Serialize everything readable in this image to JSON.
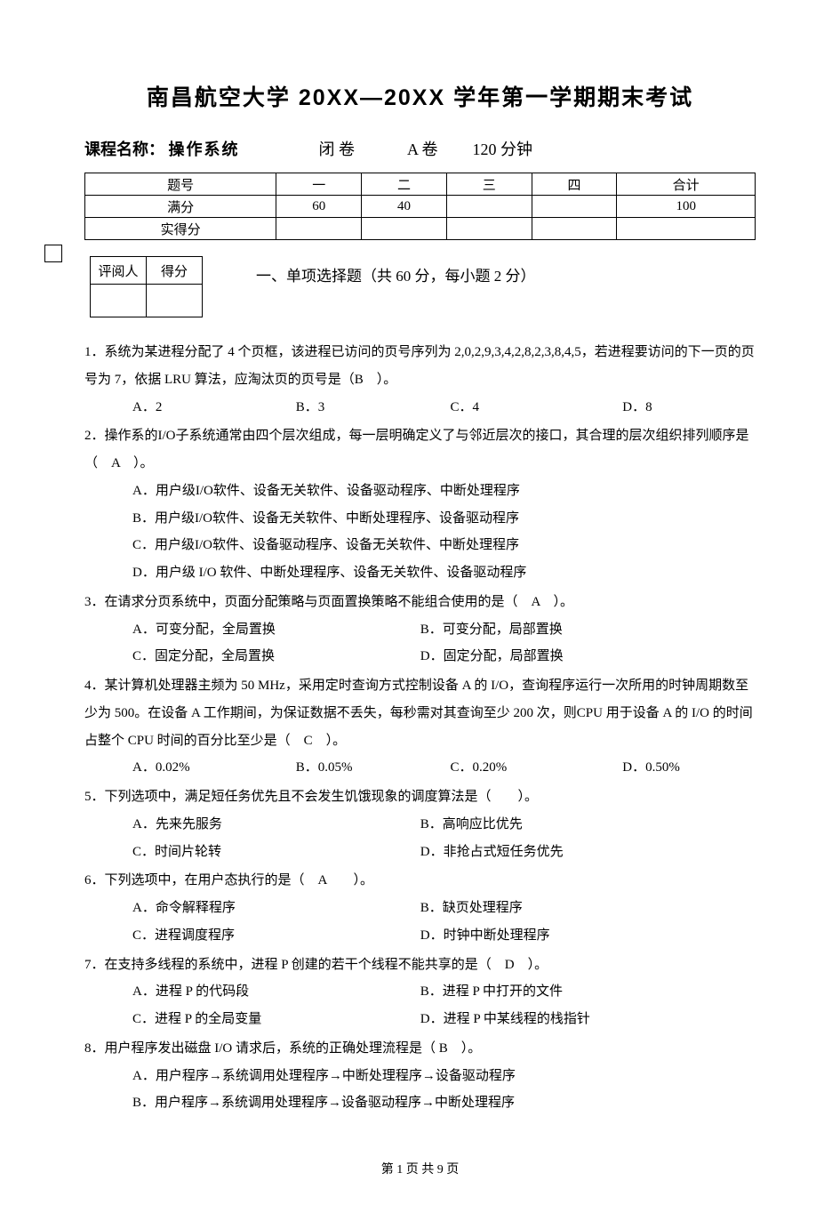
{
  "title": "南昌航空大学 20XX—20XX 学年第一学期期末考试",
  "course": {
    "label": "课程名称：",
    "name": "操作系统",
    "mode": "闭 卷",
    "paper": "A 卷",
    "duration": "120 分钟"
  },
  "score_table": {
    "headers": [
      "题号",
      "一",
      "二",
      "三",
      "四",
      "合计"
    ],
    "rows": [
      [
        "满分",
        "60",
        "40",
        "",
        "",
        "100"
      ],
      [
        "实得分",
        "",
        "",
        "",
        "",
        ""
      ]
    ]
  },
  "review_table": {
    "h1": "评阅人",
    "h2": "得分"
  },
  "section1_title": "一、单项选择题（共 60 分，每小题 2 分）",
  "q1": {
    "stem": "1．系统为某进程分配了 4 个页框，该进程已访问的页号序列为 2,0,2,9,3,4,2,8,2,3,8,4,5，若进程要访问的下一页的页号为 7，依据 LRU 算法，应淘汰页的页号是（B　）。",
    "A": "A．2",
    "B": "B．3",
    "C": "C．4",
    "D": "D．8"
  },
  "q2": {
    "stem": "2．操作系的I/O子系统通常由四个层次组成，每一层明确定义了与邻近层次的接口，其合理的层次组织排列顺序是（　A　）。",
    "A": "A．用户级I/O软件、设备无关软件、设备驱动程序、中断处理程序",
    "B": "B．用户级I/O软件、设备无关软件、中断处理程序、设备驱动程序",
    "C": "C．用户级I/O软件、设备驱动程序、设备无关软件、中断处理程序",
    "D": "D．用户级 I/O 软件、中断处理程序、设备无关软件、设备驱动程序"
  },
  "q3": {
    "stem": "3．在请求分页系统中，页面分配策略与页面置换策略不能组合使用的是（　A　）。",
    "A": "A．可变分配，全局置换",
    "B": "B．可变分配，局部置换",
    "C": "C．固定分配，全局置换",
    "D": "D．固定分配，局部置换"
  },
  "q4": {
    "stem": "4．某计算机处理器主频为 50 MHz，采用定时查询方式控制设备 A 的 I/O，查询程序运行一次所用的时钟周期数至少为 500。在设备 A 工作期间，为保证数据不丢失，每秒需对其查询至少 200 次，则CPU 用于设备 A 的 I/O 的时间占整个 CPU 时间的百分比至少是（　C　）。",
    "A": "A．0.02%",
    "B": "B．0.05%",
    "C": "C．0.20%",
    "D": "D．0.50%"
  },
  "q5": {
    "stem": "5．下列选项中，满足短任务优先且不会发生饥饿现象的调度算法是（　　）。",
    "A": "A．先来先服务",
    "B": "B．高响应比优先",
    "C": "C．时间片轮转",
    "D": "D．非抢占式短任务优先"
  },
  "q6": {
    "stem": "6．下列选项中，在用户态执行的是（　A　　）。",
    "A": "A．命令解释程序",
    "B": "B．缺页处理程序",
    "C": "C．进程调度程序",
    "D": "D．时钟中断处理程序"
  },
  "q7": {
    "stem": "7．在支持多线程的系统中，进程 P 创建的若干个线程不能共享的是（　D　）。",
    "A": "A．进程 P 的代码段",
    "B": "B．进程 P 中打开的文件",
    "C": "C．进程 P 的全局变量",
    "D": "D．进程 P 中某线程的栈指针"
  },
  "q8": {
    "stem": "8．用户程序发出磁盘 I/O 请求后，系统的正确处理流程是（ B　）。",
    "A": "A．用户程序→系统调用处理程序→中断处理程序→设备驱动程序",
    "B": "B．用户程序→系统调用处理程序→设备驱动程序→中断处理程序"
  },
  "footer": "第 1 页 共 9 页"
}
